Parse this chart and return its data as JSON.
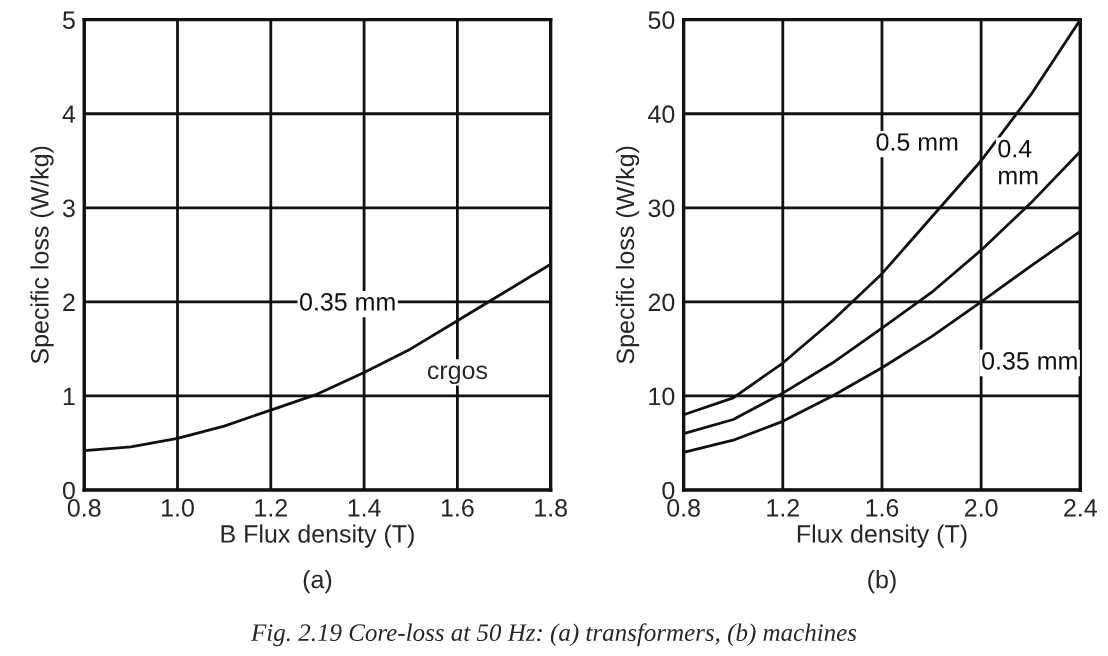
{
  "chart_data": [
    {
      "type": "line",
      "xlabel": "B Flux density (T)",
      "ylabel": "Specific loss (W/kg)",
      "x": [
        0.8,
        0.9,
        1.0,
        1.1,
        1.2,
        1.3,
        1.4,
        1.5,
        1.6,
        1.7,
        1.8
      ],
      "series": [
        {
          "name": "0.35 mm",
          "color": "#111111",
          "values": [
            0.42,
            0.46,
            0.55,
            0.68,
            0.85,
            1.02,
            1.25,
            1.5,
            1.8,
            2.1,
            2.4
          ]
        }
      ],
      "xlim": [
        0.8,
        1.8
      ],
      "xticks": [
        0.8,
        {
          "value": 1.0,
          "label": "1.0"
        },
        1.2,
        1.4,
        1.6,
        1.8
      ],
      "ylim": [
        0,
        5
      ],
      "yticks": [
        0,
        1,
        2,
        3,
        4,
        5
      ],
      "grid": true,
      "legend": false,
      "marker": "none",
      "line_style": "solid",
      "annotations": [
        {
          "text": "crgos",
          "x": 1.6,
          "y": 1.25
        },
        "(a)",
        "Fig. 2.19 Core-loss at 50 Hz: (a) transformers, (b) machines"
      ]
    },
    {
      "type": "line",
      "xlabel": "Flux density (T)",
      "ylabel": "Specific loss (W/kg)",
      "x": [
        0.8,
        1.0,
        1.2,
        1.4,
        1.6,
        1.8,
        2.0,
        2.2,
        2.4
      ],
      "series": [
        {
          "name": "0.5 mm",
          "color": "#111111",
          "values": [
            8,
            9.8,
            13.5,
            18,
            23,
            29,
            35,
            42,
            50
          ]
        },
        {
          "name": "0.4\nmm",
          "color": "#111111",
          "values": [
            6,
            7.5,
            10.3,
            13.5,
            17.2,
            21,
            25.5,
            30.5,
            36
          ]
        },
        {
          "name": "0.35 mm",
          "color": "#111111",
          "values": [
            4,
            5.3,
            7.3,
            10,
            13,
            16.3,
            20,
            23.8,
            27.5
          ]
        }
      ],
      "xlim": [
        0.8,
        2.4
      ],
      "xticks": [
        0.8,
        1.2,
        1.6,
        {
          "value": 2.0,
          "label": "2.0"
        },
        2.4
      ],
      "ylim": [
        0,
        50
      ],
      "yticks": [
        0,
        10,
        20,
        30,
        40,
        50
      ],
      "grid": true,
      "legend": false,
      "marker": "none",
      "line_style": "solid",
      "annotations": [
        "(b)"
      ]
    }
  ]
}
